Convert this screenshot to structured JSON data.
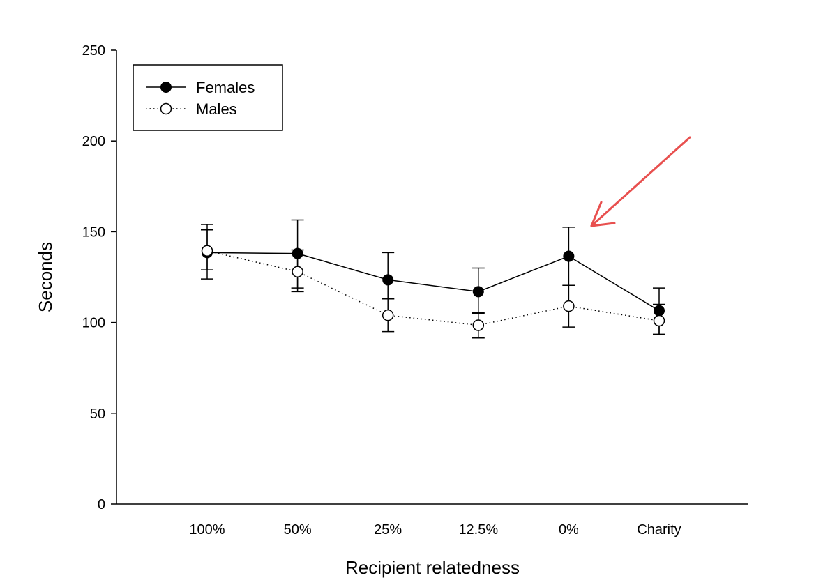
{
  "chart_data": {
    "type": "line",
    "xlabel": "Recipient relatedness",
    "ylabel": "Seconds",
    "ylim": [
      0,
      250
    ],
    "yticks": [
      0,
      50,
      100,
      150,
      200,
      250
    ],
    "categories": [
      "100%",
      "50%",
      "25%",
      "12.5%",
      "0%",
      "Charity"
    ],
    "grid": false,
    "legend": "top-left",
    "series": [
      {
        "name": "Females",
        "marker": "filled-circle",
        "line": "solid",
        "color": "#000000",
        "values": [
          138.5,
          138,
          123.5,
          117,
          136.5,
          106.5
        ],
        "err_upper": [
          15.5,
          18.5,
          15,
          13,
          16,
          12.5
        ],
        "err_lower": [
          9.5,
          19,
          10.5,
          12,
          16,
          13
        ]
      },
      {
        "name": "Males",
        "marker": "open-circle",
        "line": "dotted",
        "color": "#000000",
        "values": [
          139.5,
          128,
          104,
          98.5,
          109,
          101
        ],
        "err_upper": [
          11.5,
          12,
          9,
          7,
          11.5,
          9
        ],
        "err_lower": [
          15.5,
          11,
          9,
          7,
          11.5,
          7.5
        ]
      }
    ],
    "annotation": {
      "type": "arrow",
      "color": "#e8504f",
      "points_to_category": "0%"
    }
  }
}
